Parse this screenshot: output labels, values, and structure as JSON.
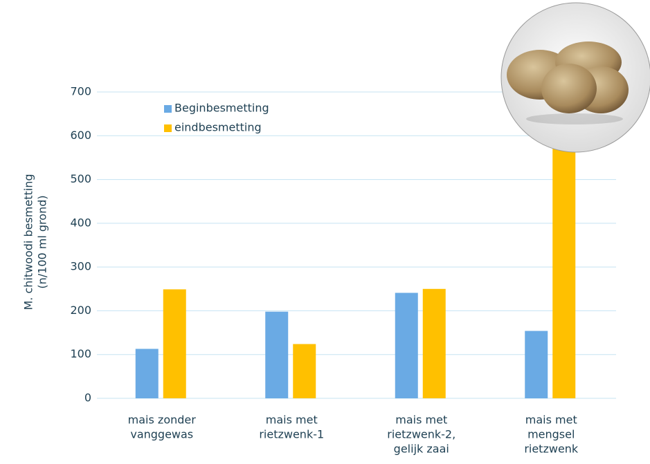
{
  "chart_data": {
    "type": "bar",
    "y_label": [
      "M. chitwoodi besmetting",
      "(n/100 ml grond)"
    ],
    "categories": [
      [
        "mais zonder",
        "vanggewas"
      ],
      [
        "mais met",
        "rietzwenk-1"
      ],
      [
        "mais met",
        "rietzwenk-2,",
        "gelijk zaai"
      ],
      [
        "mais met",
        "mengsel",
        "rietzwenk"
      ]
    ],
    "series": [
      {
        "name": "Beginbesmetting",
        "color": "#6aaae4",
        "values": [
          113,
          198,
          241,
          154
        ]
      },
      {
        "name": "eindbesmetting",
        "color": "#ffc000",
        "values": [
          249,
          124,
          250,
          680
        ]
      }
    ],
    "ylim": [
      0,
      700
    ],
    "yticks": [
      0,
      100,
      200,
      300,
      400,
      500,
      600,
      700
    ],
    "grid": true
  }
}
